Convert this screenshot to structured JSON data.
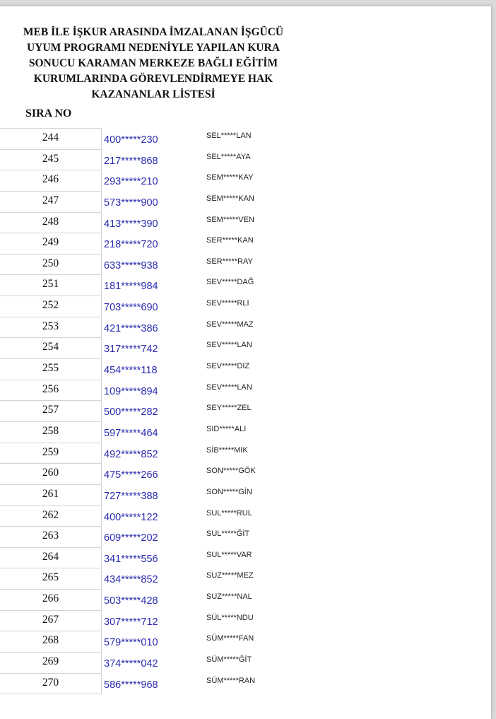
{
  "document": {
    "title_lines": [
      "MEB İLE İŞKUR ARASINDA İMZALANAN İŞGÜCÜ",
      "UYUM PROGRAMI NEDENİYLE YAPILAN KURA",
      "SONUCU KARAMAN MERKEZE BAĞLI EĞİTİM",
      "KURUMLARINDA GÖREVLENDİRMEYE HAK",
      "KAZANANLAR LİSTESİ"
    ],
    "column_header": "SIRA NO",
    "rows": [
      {
        "no": "244",
        "id": "400*****230",
        "name": "SEL*****LAN"
      },
      {
        "no": "245",
        "id": "217*****868",
        "name": "SEL*****AYA"
      },
      {
        "no": "246",
        "id": "293*****210",
        "name": "SEM*****KAY"
      },
      {
        "no": "247",
        "id": "573*****900",
        "name": "SEM*****KAN"
      },
      {
        "no": "248",
        "id": "413*****390",
        "name": "SEM*****VEN"
      },
      {
        "no": "249",
        "id": "218*****720",
        "name": "SER*****KAN"
      },
      {
        "no": "250",
        "id": "633*****938",
        "name": "SER*****RAY"
      },
      {
        "no": "251",
        "id": "181*****984",
        "name": "SEV*****DAĞ"
      },
      {
        "no": "252",
        "id": "703*****690",
        "name": "SEV*****RLI"
      },
      {
        "no": "253",
        "id": "421*****386",
        "name": "SEV*****MAZ"
      },
      {
        "no": "254",
        "id": "317*****742",
        "name": "SEV*****LAN"
      },
      {
        "no": "255",
        "id": "454*****118",
        "name": "SEV*****DIZ"
      },
      {
        "no": "256",
        "id": "109*****894",
        "name": "SEV*****LAN"
      },
      {
        "no": "257",
        "id": "500*****282",
        "name": "SEY*****ZEL"
      },
      {
        "no": "258",
        "id": "597*****464",
        "name": "SID*****ALI"
      },
      {
        "no": "259",
        "id": "492*****852",
        "name": "SİB*****MIK"
      },
      {
        "no": "260",
        "id": "475*****266",
        "name": "SON*****GÖK"
      },
      {
        "no": "261",
        "id": "727*****388",
        "name": "SON*****GİN"
      },
      {
        "no": "262",
        "id": "400*****122",
        "name": "SUL*****RUL"
      },
      {
        "no": "263",
        "id": "609*****202",
        "name": "SUL*****ĞİT"
      },
      {
        "no": "264",
        "id": "341*****556",
        "name": "SUL*****VAR"
      },
      {
        "no": "265",
        "id": "434*****852",
        "name": "SUZ*****MEZ"
      },
      {
        "no": "266",
        "id": "503*****428",
        "name": "SUZ*****NAL"
      },
      {
        "no": "267",
        "id": "307*****712",
        "name": "SÜL*****NDU"
      },
      {
        "no": "268",
        "id": "579*****010",
        "name": "SÜM*****FAN"
      },
      {
        "no": "269",
        "id": "374*****042",
        "name": "SÜM*****ĞİT"
      },
      {
        "no": "270",
        "id": "586*****968",
        "name": "SÜM*****RAN"
      }
    ]
  },
  "colors": {
    "id_text": "#2b2bb0",
    "text": "#111111",
    "background": "#ffffff"
  }
}
